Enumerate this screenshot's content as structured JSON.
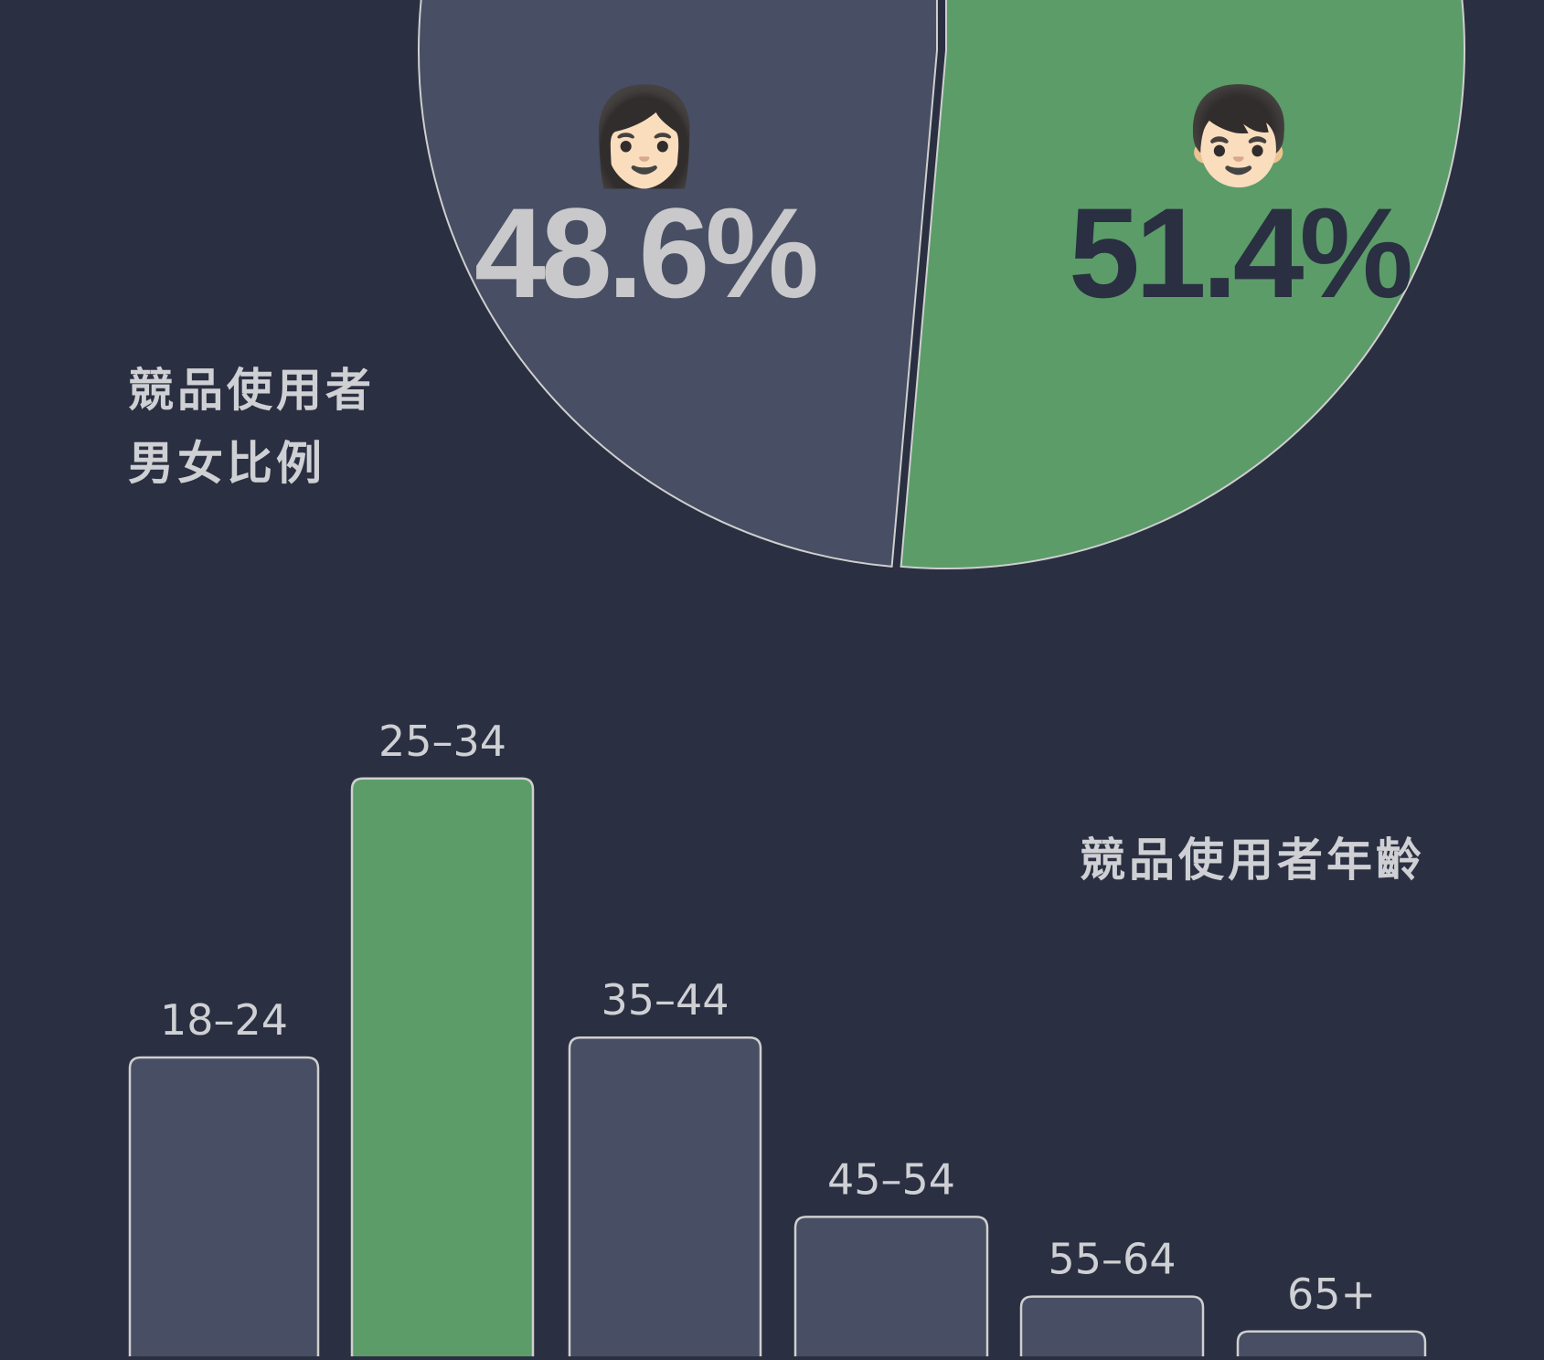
{
  "chart_data": [
    {
      "type": "pie",
      "title": "競品使用者\n男女比例",
      "slices": [
        {
          "label": "48.6%",
          "value": 48.6,
          "icon": "woman-emoji-icon",
          "glyph": "👩🏻",
          "color": "#484e63",
          "text_color": "#c9c9cb"
        },
        {
          "label": "51.4%",
          "value": 51.4,
          "icon": "boy-emoji-icon",
          "glyph": "👦🏻",
          "color": "#5b9c69",
          "text_color": "#2a2f41"
        }
      ]
    },
    {
      "type": "bar",
      "title": "競品使用者年齡",
      "categories": [
        "18–24",
        "25–34",
        "35–44",
        "45–54",
        "55–64",
        "65+"
      ],
      "values": [
        30,
        58,
        32,
        14,
        6,
        2.5
      ],
      "highlight_index": 1,
      "colors": {
        "bar": "#484e63",
        "highlight": "#5b9c69",
        "outline": "#cfcfcf"
      }
    }
  ],
  "colors": {
    "background": "#2a2f41",
    "text": "#cfd0d4"
  }
}
